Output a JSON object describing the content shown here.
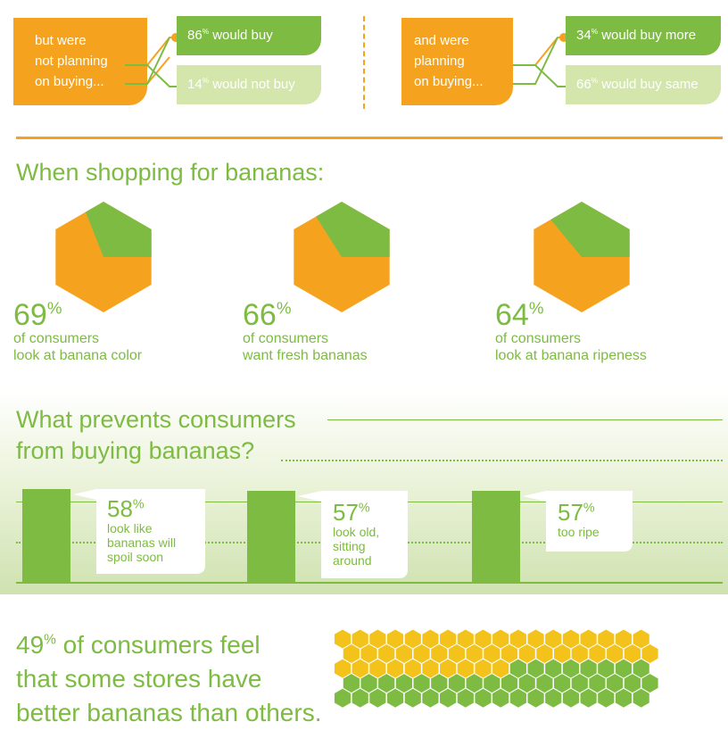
{
  "purchase": {
    "left": {
      "lead": [
        "but were",
        "not planning",
        "on buying..."
      ],
      "outcome1": {
        "pct": "86",
        "sup": "%",
        "text": " would buy"
      },
      "outcome2": {
        "pct": "14",
        "sup": "%",
        "text": " would not buy"
      }
    },
    "right": {
      "lead": [
        "and were",
        "planning",
        "on buying..."
      ],
      "outcome1": {
        "pct": "34",
        "sup": "%",
        "text": " would buy more"
      },
      "outcome2": {
        "pct": "66",
        "sup": "%",
        "text": " would buy same"
      }
    }
  },
  "shopping": {
    "heading": "When shopping for bananas:",
    "stats": [
      {
        "pct": "69",
        "sup": "%",
        "line1": "of consumers",
        "line2": "look at banana color",
        "value": 69
      },
      {
        "pct": "66",
        "sup": "%",
        "line1": "of consumers",
        "line2": "want fresh bananas",
        "value": 66
      },
      {
        "pct": "64",
        "sup": "%",
        "line1": "of consumers",
        "line2": "look at banana ripeness",
        "value": 64
      }
    ]
  },
  "prevents": {
    "heading_line1": "What prevents consumers",
    "heading_line2": "from buying bananas?",
    "items": [
      {
        "pct": "58",
        "sup": "%",
        "lines": [
          "look like",
          "bananas will",
          "spoil soon"
        ],
        "value": 58
      },
      {
        "pct": "57",
        "sup": "%",
        "lines": [
          "look old,",
          "sitting",
          "around"
        ],
        "value": 57
      },
      {
        "pct": "57",
        "sup": "%",
        "lines": [
          "too ripe"
        ],
        "value": 57
      }
    ]
  },
  "stores": {
    "pct": "49",
    "sup": "%",
    "line1": " of consumers feel",
    "line2": "that some stores have",
    "line3": "better bananas than others.",
    "value": 49
  },
  "colors": {
    "orange": "#f5a31f",
    "green": "#7dbb42",
    "light_green": "#d4e6ac",
    "yellow": "#f3c21b"
  }
}
